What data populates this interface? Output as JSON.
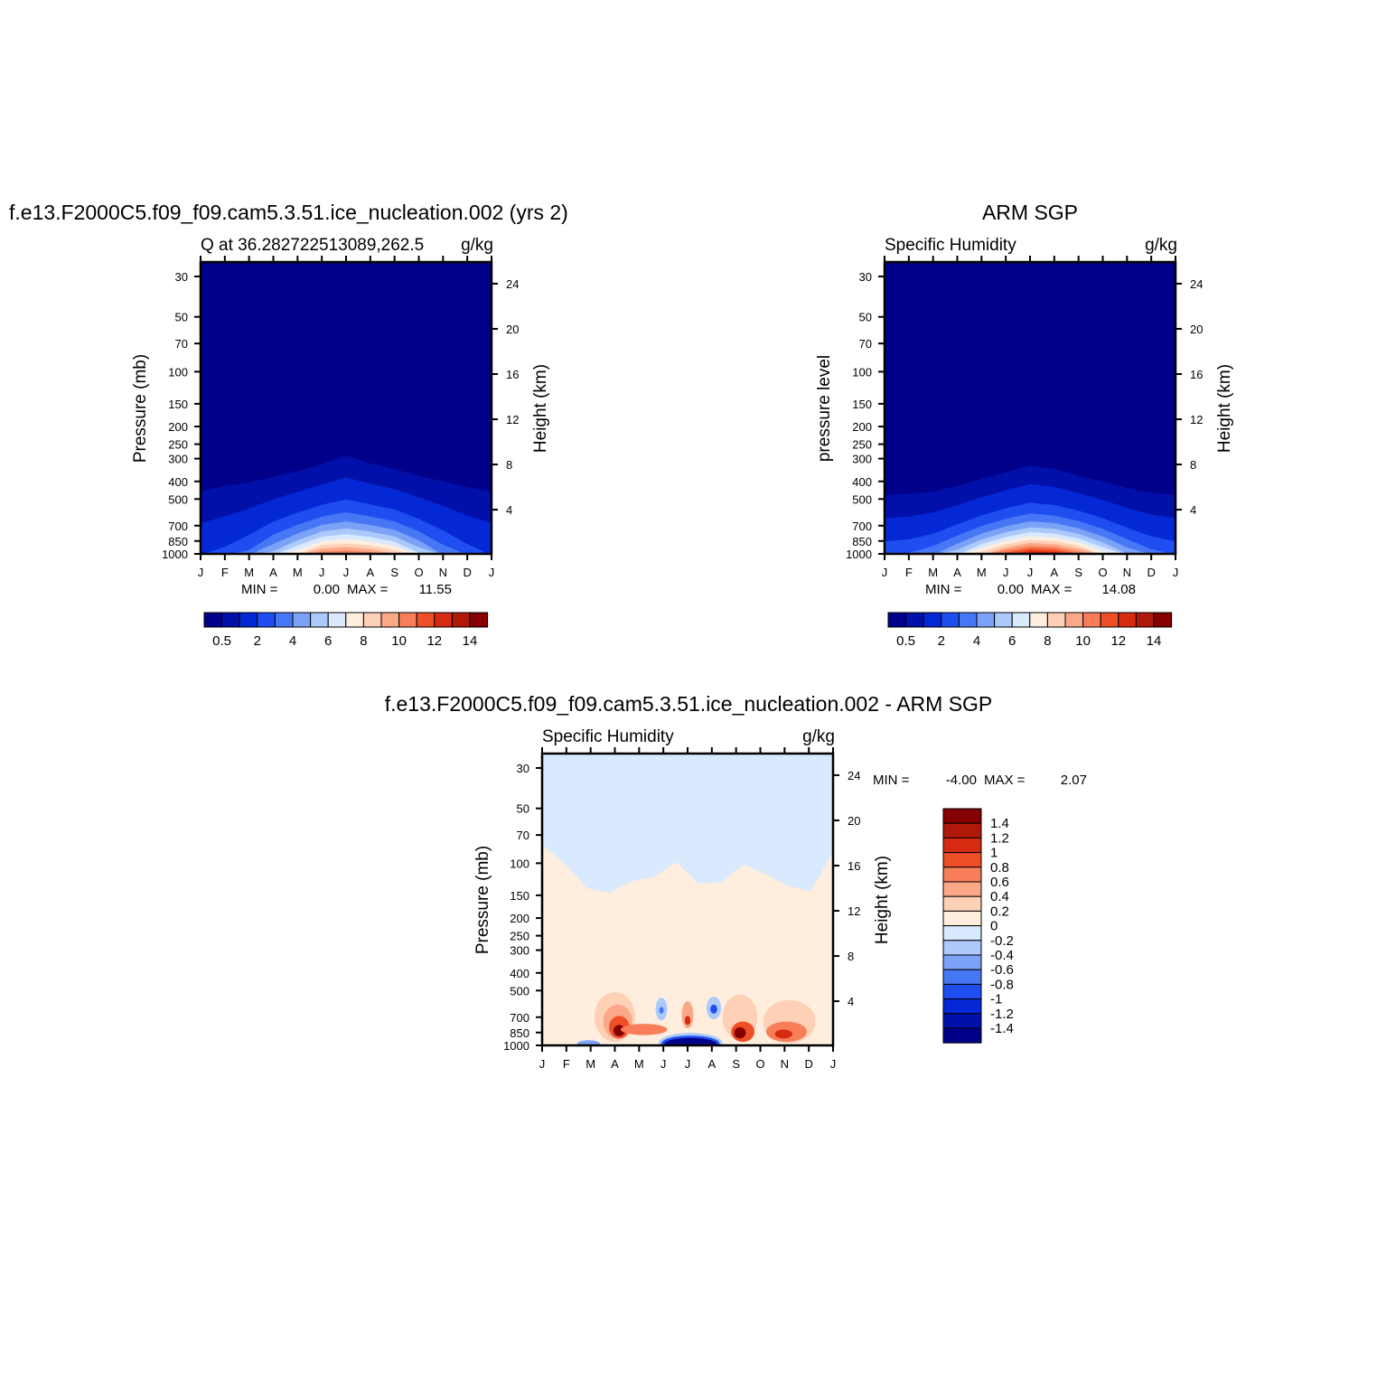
{
  "chart_data": [
    {
      "type": "heatmap",
      "title": "f.e13.F2000C5.f09_f09.cam5.3.51.ice_nucleation.002 (yrs 2)",
      "subtitle_left": "Q at 36.282722513089,262.5",
      "units": "g/kg",
      "ylabel": "Pressure (mb)",
      "ylabel_right": "Height (km)",
      "x_ticks": [
        "J",
        "F",
        "M",
        "A",
        "M",
        "J",
        "J",
        "A",
        "S",
        "O",
        "N",
        "D",
        "J"
      ],
      "y_ticks": [
        "30",
        "50",
        "70",
        "100",
        "150",
        "200",
        "250",
        "300",
        "400",
        "500",
        "700",
        "850",
        "1000"
      ],
      "y_ticks_right": [
        "24",
        "20",
        "16",
        "12",
        "8",
        "4"
      ],
      "min_label": "MIN =",
      "min_value": "0.00",
      "max_label": "MAX =",
      "max_value": "11.55",
      "colorbar_labels": [
        "0.5",
        "2",
        "4",
        "6",
        "8",
        "10",
        "12",
        "14"
      ],
      "surface_q_by_month": [
        2.0,
        2.4,
        3.4,
        5.6,
        8.2,
        11.2,
        11.5,
        11.0,
        9.4,
        6.4,
        4.0,
        2.6,
        2.0
      ],
      "q_level_heights_km": [
        5.6,
        6.1,
        6.4,
        6.9,
        7.4,
        8.0,
        8.8,
        8.1,
        7.6,
        7.0,
        6.5,
        6.0,
        5.6
      ]
    },
    {
      "type": "heatmap",
      "title": "ARM SGP",
      "subtitle_left": "Specific Humidity",
      "units": "g/kg",
      "ylabel": "pressure level",
      "ylabel_right": "Height (km)",
      "x_ticks": [
        "J",
        "F",
        "M",
        "A",
        "M",
        "J",
        "J",
        "A",
        "S",
        "O",
        "N",
        "D",
        "J"
      ],
      "y_ticks": [
        "30",
        "50",
        "70",
        "100",
        "150",
        "200",
        "250",
        "300",
        "400",
        "500",
        "700",
        "850",
        "1000"
      ],
      "y_ticks_right": [
        "24",
        "20",
        "16",
        "12",
        "8",
        "4"
      ],
      "min_label": "MIN =",
      "min_value": "0.00",
      "max_label": "MAX =",
      "max_value": "14.08",
      "colorbar_labels": [
        "0.5",
        "2",
        "4",
        "6",
        "8",
        "10",
        "12",
        "14"
      ],
      "surface_q_by_month": [
        3.0,
        3.2,
        4.0,
        6.0,
        9.0,
        12.0,
        14.0,
        13.6,
        11.5,
        8.0,
        5.2,
        3.6,
        3.0
      ],
      "q_level_heights_km": [
        5.3,
        5.4,
        5.6,
        6.1,
        6.7,
        7.3,
        7.9,
        7.6,
        7.0,
        6.5,
        5.9,
        5.5,
        5.3
      ]
    },
    {
      "type": "heatmap",
      "title": "f.e13.F2000C5.f09_f09.cam5.3.51.ice_nucleation.002 - ARM SGP",
      "subtitle_left": "Specific Humidity",
      "units": "g/kg",
      "ylabel": "Pressure (mb)",
      "ylabel_right": "Height (km)",
      "x_ticks": [
        "J",
        "F",
        "M",
        "A",
        "M",
        "J",
        "J",
        "A",
        "S",
        "O",
        "N",
        "D",
        "J"
      ],
      "y_ticks": [
        "30",
        "50",
        "70",
        "100",
        "150",
        "200",
        "250",
        "300",
        "400",
        "500",
        "700",
        "850",
        "1000"
      ],
      "y_ticks_right": [
        "24",
        "20",
        "16",
        "12",
        "8",
        "4"
      ],
      "min_label": "MIN =",
      "min_value": "-4.00",
      "max_label": "MAX =",
      "max_value": "2.07",
      "colorbar_labels": [
        "1.4",
        "1.2",
        "1",
        "0.8",
        "0.6",
        "0.4",
        "0.2",
        "0",
        "-0.2",
        "-0.4",
        "-0.6",
        "-0.8",
        "-1",
        "-1.2",
        "-1.4"
      ],
      "upper_boundary_height_km": [
        17.8,
        16.2,
        14.0,
        13.6,
        14.6,
        15.0,
        16.3,
        14.4,
        14.5,
        16.1,
        15.2,
        14.2,
        13.7,
        17.2
      ]
    }
  ],
  "colors": {
    "q_scale": [
      "#00008b",
      "#0010a8",
      "#0528d6",
      "#1e4ef0",
      "#4877f5",
      "#7ba2f7",
      "#abc9fb",
      "#d9e9fe",
      "#ffeedd",
      "#fed0b6",
      "#fba888",
      "#f77e58",
      "#ef4f26",
      "#d62a11",
      "#b01809",
      "#850000"
    ],
    "diff_scale": [
      "#850000",
      "#b01809",
      "#d62a11",
      "#ef4f26",
      "#f77e58",
      "#fba888",
      "#fed0b6",
      "#ffeedd",
      "#d9e9fe",
      "#abc9fb",
      "#7ba2f7",
      "#4877f5",
      "#1e4ef0",
      "#0528d6",
      "#0010a8",
      "#00008b"
    ]
  }
}
